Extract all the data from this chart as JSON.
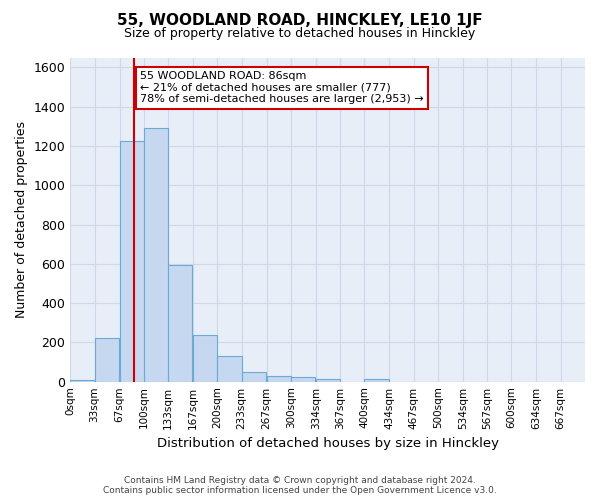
{
  "title": "55, WOODLAND ROAD, HINCKLEY, LE10 1JF",
  "subtitle": "Size of property relative to detached houses in Hinckley",
  "xlabel": "Distribution of detached houses by size in Hinckley",
  "ylabel": "Number of detached properties",
  "footer_line1": "Contains HM Land Registry data © Crown copyright and database right 2024.",
  "footer_line2": "Contains public sector information licensed under the Open Government Licence v3.0.",
  "bin_edges": [
    0,
    33,
    67,
    100,
    133,
    167,
    200,
    233,
    267,
    300,
    334,
    367,
    400,
    434,
    467,
    500,
    534,
    567,
    600,
    634,
    667
  ],
  "bar_heights": [
    10,
    220,
    1225,
    1290,
    595,
    240,
    130,
    50,
    30,
    25,
    15,
    0,
    15,
    0,
    0,
    0,
    0,
    0,
    0,
    0
  ],
  "bar_color": "#c5d8ef",
  "bar_edge_color": "#6aaad4",
  "grid_color": "#d0d8e8",
  "background_color": "#e8eef8",
  "property_size": 86,
  "annotation_line1": "55 WOODLAND ROAD: 86sqm",
  "annotation_line2": "← 21% of detached houses are smaller (777)",
  "annotation_line3": "78% of semi-detached houses are larger (2,953) →",
  "annotation_box_color": "#ffffff",
  "annotation_box_edge": "#cc0000",
  "vline_color": "#cc0000",
  "ylim": [
    0,
    1650
  ],
  "yticks": [
    0,
    200,
    400,
    600,
    800,
    1000,
    1200,
    1400,
    1600
  ],
  "tick_labels": [
    "0sqm",
    "33sqm",
    "67sqm",
    "100sqm",
    "133sqm",
    "167sqm",
    "200sqm",
    "233sqm",
    "267sqm",
    "300sqm",
    "334sqm",
    "367sqm",
    "400sqm",
    "434sqm",
    "467sqm",
    "500sqm",
    "534sqm",
    "567sqm",
    "600sqm",
    "634sqm",
    "667sqm"
  ]
}
